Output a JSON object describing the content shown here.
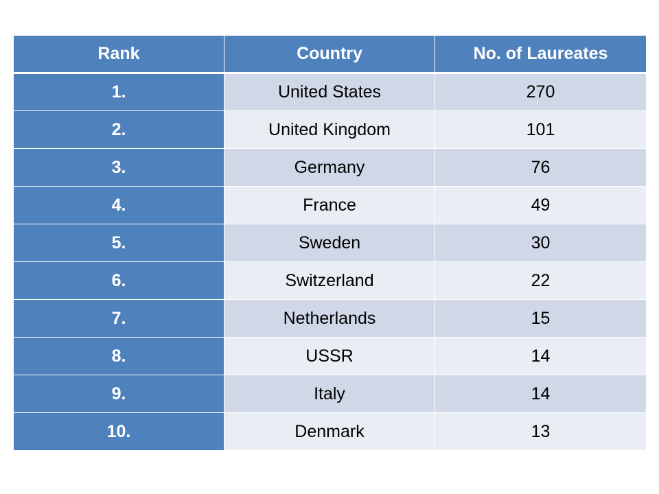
{
  "table": {
    "headers": {
      "rank": "Rank",
      "country": "Country",
      "count": "No. of Laureates"
    },
    "rows": [
      {
        "rank": "1.",
        "country": "United States",
        "count": "270"
      },
      {
        "rank": "2.",
        "country": "United Kingdom",
        "count": "101"
      },
      {
        "rank": "3.",
        "country": "Germany",
        "count": "76"
      },
      {
        "rank": "4.",
        "country": "France",
        "count": "49"
      },
      {
        "rank": "5.",
        "country": "Sweden",
        "count": "30"
      },
      {
        "rank": "6.",
        "country": "Switzerland",
        "count": "22"
      },
      {
        "rank": "7.",
        "country": "Netherlands",
        "count": "15"
      },
      {
        "rank": "8.",
        "country": "USSR",
        "count": "14"
      },
      {
        "rank": "9.",
        "country": "Italy",
        "count": "14"
      },
      {
        "rank": "10.",
        "country": "Denmark",
        "count": "13"
      }
    ]
  },
  "colors": {
    "header_bg": "#4f81bd",
    "row_band_dark": "#d0d8e8",
    "row_band_light": "#e9edf4"
  }
}
